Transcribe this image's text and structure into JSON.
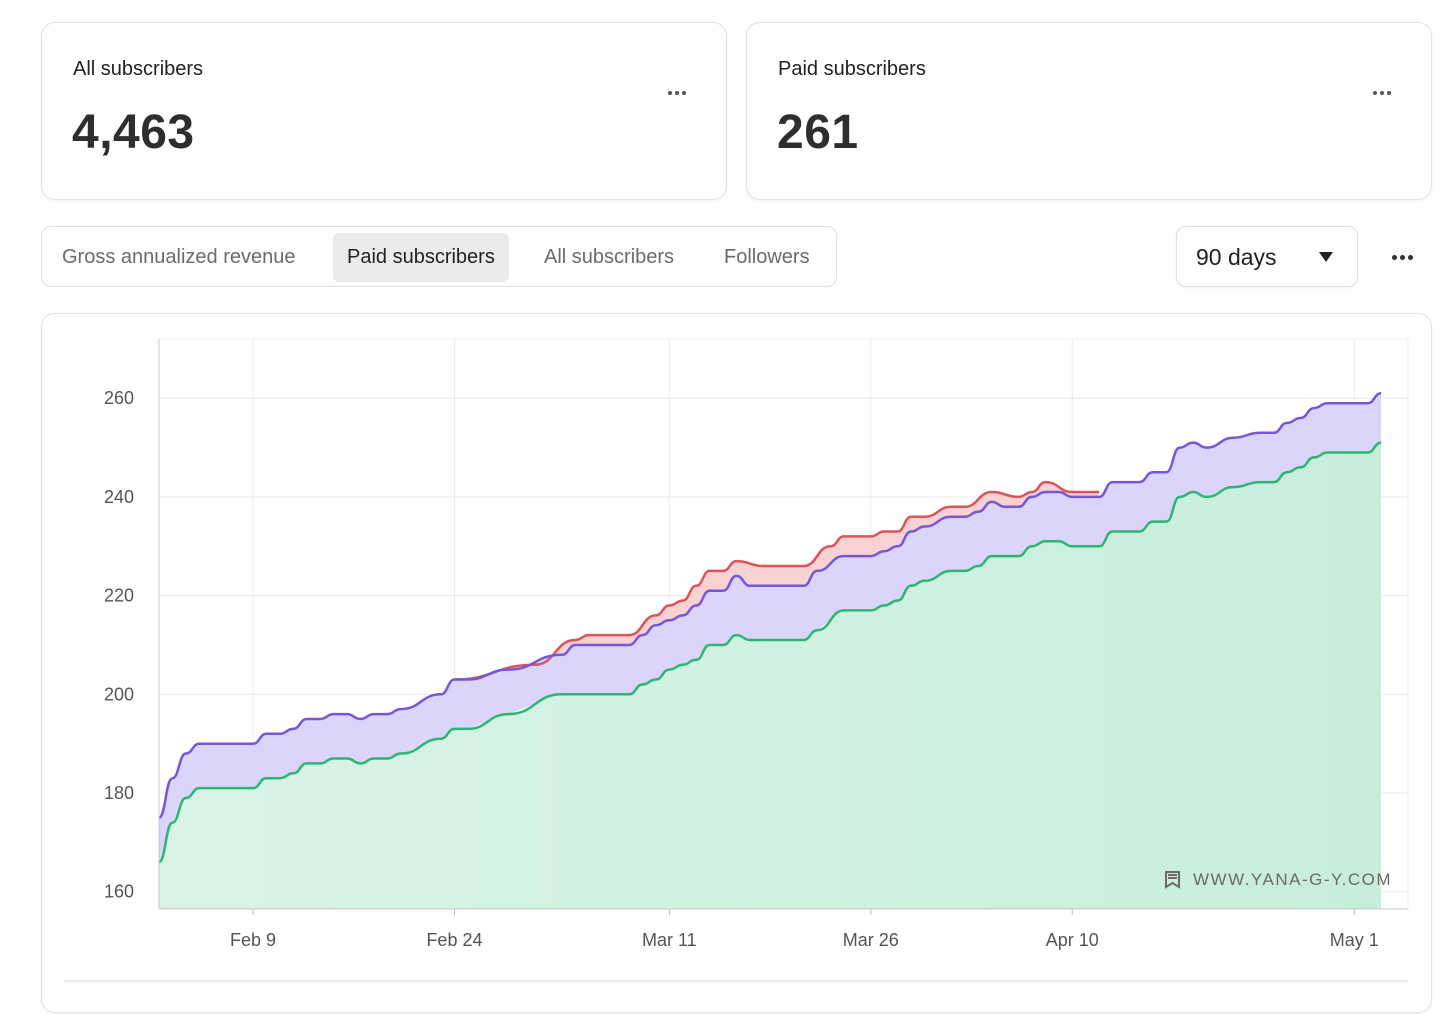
{
  "cards": {
    "all_subscribers": {
      "label": "All subscribers",
      "value": "4,463"
    },
    "paid_subscribers": {
      "label": "Paid subscribers",
      "value": "261"
    }
  },
  "tabs": [
    {
      "label": "Gross annualized revenue",
      "active": false
    },
    {
      "label": "Paid subscribers",
      "active": true
    },
    {
      "label": "All subscribers",
      "active": false
    },
    {
      "label": "Followers",
      "active": false
    }
  ],
  "range_select": {
    "value": "90 days"
  },
  "watermark": {
    "text": "WWW.YANA-G-Y.COM",
    "icon": "bookmark-icon"
  },
  "colors": {
    "red_line": "#d9545b",
    "red_fill": "#f8d2d3",
    "purple_line": "#7656d9",
    "purple_fill": "#dcd5fb",
    "green_line": "#2bb673",
    "green_fill": "#d3f1e1"
  },
  "chart_data": {
    "type": "area",
    "x_ticks": [
      "Feb 9",
      "Feb 24",
      "Mar 11",
      "Mar 26",
      "Apr 10",
      "May 1"
    ],
    "y_ticks": [
      160,
      180,
      200,
      220,
      240,
      260
    ],
    "xlim": [
      "Feb 2",
      "May 5"
    ],
    "ylim": [
      156.5,
      272
    ],
    "grid": true,
    "legend": "none",
    "series": [
      {
        "role": "red",
        "points": [
          [
            "Feb 24",
            203
          ],
          [
            "Mar 1",
            206
          ],
          [
            "Mar 4",
            211
          ],
          [
            "Mar 5",
            212
          ],
          [
            "Mar 8",
            212
          ],
          [
            "Mar 10",
            216
          ],
          [
            "Mar 11",
            218
          ],
          [
            "Mar 12",
            219
          ],
          [
            "Mar 13",
            222
          ],
          [
            "Mar 14",
            225
          ],
          [
            "Mar 15",
            225
          ],
          [
            "Mar 16",
            227
          ],
          [
            "Mar 18",
            226
          ],
          [
            "Mar 21",
            226
          ],
          [
            "Mar 23",
            230
          ],
          [
            "Mar 24",
            232
          ],
          [
            "Mar 26",
            232
          ],
          [
            "Mar 27",
            233
          ],
          [
            "Mar 28",
            233
          ],
          [
            "Mar 29",
            236
          ],
          [
            "Mar 30",
            236
          ],
          [
            "Apr 1",
            238
          ],
          [
            "Apr 2",
            238
          ],
          [
            "Apr 4",
            241
          ],
          [
            "Apr 6",
            240
          ],
          [
            "Apr 7",
            241
          ],
          [
            "Apr 8",
            243
          ],
          [
            "Apr 10",
            241
          ],
          [
            "Apr 12",
            241
          ]
        ]
      },
      {
        "role": "purple",
        "points": [
          [
            "Feb 2",
            175
          ],
          [
            "Feb 3",
            183
          ],
          [
            "Feb 4",
            188
          ],
          [
            "Feb 5",
            190
          ],
          [
            "Feb 9",
            190
          ],
          [
            "Feb 10",
            192
          ],
          [
            "Feb 11",
            192
          ],
          [
            "Feb 12",
            193
          ],
          [
            "Feb 13",
            195
          ],
          [
            "Feb 14",
            195
          ],
          [
            "Feb 15",
            196
          ],
          [
            "Feb 16",
            196
          ],
          [
            "Feb 17",
            195
          ],
          [
            "Feb 18",
            196
          ],
          [
            "Feb 19",
            196
          ],
          [
            "Feb 20",
            197
          ],
          [
            "Feb 23",
            200
          ],
          [
            "Feb 24",
            203
          ],
          [
            "Feb 25",
            203
          ],
          [
            "Feb 28",
            205
          ],
          [
            "Mar 3",
            208
          ],
          [
            "Mar 4",
            210
          ],
          [
            "Mar 8",
            210
          ],
          [
            "Mar 9",
            212
          ],
          [
            "Mar 10",
            214
          ],
          [
            "Mar 11",
            215
          ],
          [
            "Mar 12",
            216
          ],
          [
            "Mar 13",
            218
          ],
          [
            "Mar 14",
            221
          ],
          [
            "Mar 15",
            221
          ],
          [
            "Mar 16",
            224
          ],
          [
            "Mar 17",
            222
          ],
          [
            "Mar 21",
            222
          ],
          [
            "Mar 22",
            225
          ],
          [
            "Mar 24",
            228
          ],
          [
            "Mar 26",
            228
          ],
          [
            "Mar 27",
            229
          ],
          [
            "Mar 28",
            230
          ],
          [
            "Mar 29",
            233
          ],
          [
            "Mar 30",
            234
          ],
          [
            "Apr 1",
            236
          ],
          [
            "Apr 2",
            236
          ],
          [
            "Apr 3",
            237
          ],
          [
            "Apr 4",
            239
          ],
          [
            "Apr 5",
            238
          ],
          [
            "Apr 6",
            238
          ],
          [
            "Apr 7",
            240
          ],
          [
            "Apr 8",
            241
          ],
          [
            "Apr 9",
            241
          ],
          [
            "Apr 10",
            240
          ],
          [
            "Apr 12",
            240
          ],
          [
            "Apr 13",
            243
          ],
          [
            "Apr 15",
            243
          ],
          [
            "Apr 16",
            245
          ],
          [
            "Apr 17",
            245
          ],
          [
            "Apr 18",
            250
          ],
          [
            "Apr 19",
            251
          ],
          [
            "Apr 20",
            250
          ],
          [
            "Apr 22",
            252
          ],
          [
            "Apr 24",
            253
          ],
          [
            "Apr 25",
            253
          ],
          [
            "Apr 26",
            255
          ],
          [
            "Apr 27",
            256
          ],
          [
            "Apr 28",
            258
          ],
          [
            "Apr 29",
            259
          ],
          [
            "May 2",
            259
          ],
          [
            "May 3",
            261
          ]
        ]
      },
      {
        "role": "green",
        "points": [
          [
            "Feb 2",
            166
          ],
          [
            "Feb 3",
            174
          ],
          [
            "Feb 4",
            179
          ],
          [
            "Feb 5",
            181
          ],
          [
            "Feb 9",
            181
          ],
          [
            "Feb 10",
            183
          ],
          [
            "Feb 11",
            183
          ],
          [
            "Feb 12",
            184
          ],
          [
            "Feb 13",
            186
          ],
          [
            "Feb 14",
            186
          ],
          [
            "Feb 15",
            187
          ],
          [
            "Feb 16",
            187
          ],
          [
            "Feb 17",
            186
          ],
          [
            "Feb 18",
            187
          ],
          [
            "Feb 19",
            187
          ],
          [
            "Feb 20",
            188
          ],
          [
            "Feb 23",
            191
          ],
          [
            "Feb 24",
            193
          ],
          [
            "Feb 25",
            193
          ],
          [
            "Feb 28",
            196
          ],
          [
            "Mar 3",
            200
          ],
          [
            "Mar 4",
            200
          ],
          [
            "Mar 8",
            200
          ],
          [
            "Mar 9",
            202
          ],
          [
            "Mar 10",
            203
          ],
          [
            "Mar 11",
            205
          ],
          [
            "Mar 12",
            206
          ],
          [
            "Mar 13",
            207
          ],
          [
            "Mar 14",
            210
          ],
          [
            "Mar 15",
            210
          ],
          [
            "Mar 16",
            212
          ],
          [
            "Mar 17",
            211
          ],
          [
            "Mar 21",
            211
          ],
          [
            "Mar 22",
            213
          ],
          [
            "Mar 24",
            217
          ],
          [
            "Mar 26",
            217
          ],
          [
            "Mar 27",
            218
          ],
          [
            "Mar 28",
            219
          ],
          [
            "Mar 29",
            222
          ],
          [
            "Mar 30",
            223
          ],
          [
            "Apr 1",
            225
          ],
          [
            "Apr 2",
            225
          ],
          [
            "Apr 3",
            226
          ],
          [
            "Apr 4",
            228
          ],
          [
            "Apr 6",
            228
          ],
          [
            "Apr 7",
            230
          ],
          [
            "Apr 8",
            231
          ],
          [
            "Apr 9",
            231
          ],
          [
            "Apr 10",
            230
          ],
          [
            "Apr 12",
            230
          ],
          [
            "Apr 13",
            233
          ],
          [
            "Apr 15",
            233
          ],
          [
            "Apr 16",
            235
          ],
          [
            "Apr 17",
            235
          ],
          [
            "Apr 18",
            240
          ],
          [
            "Apr 19",
            241
          ],
          [
            "Apr 20",
            240
          ],
          [
            "Apr 22",
            242
          ],
          [
            "Apr 24",
            243
          ],
          [
            "Apr 25",
            243
          ],
          [
            "Apr 26",
            245
          ],
          [
            "Apr 27",
            246
          ],
          [
            "Apr 28",
            248
          ],
          [
            "Apr 29",
            249
          ],
          [
            "May 2",
            249
          ],
          [
            "May 3",
            251
          ]
        ]
      }
    ]
  }
}
